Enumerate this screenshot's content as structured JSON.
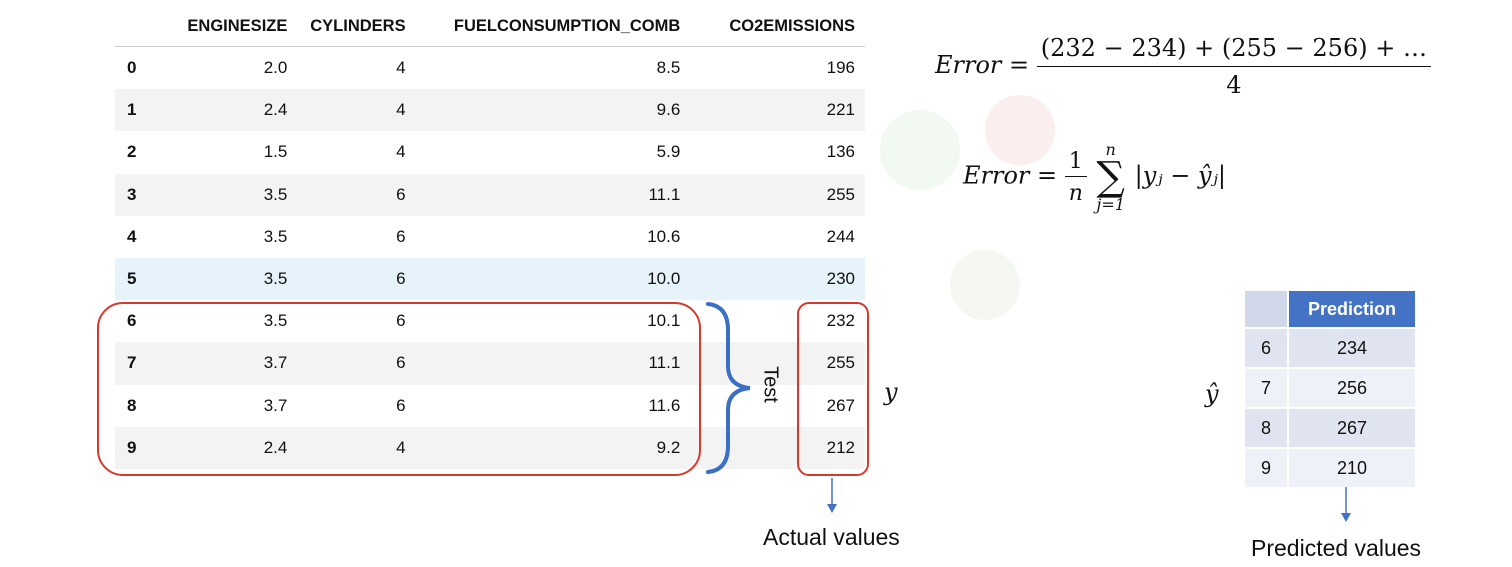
{
  "table": {
    "columns": [
      "ENGINESIZE",
      "CYLINDERS",
      "FUELCONSUMPTION_COMB",
      "CO2EMISSIONS"
    ],
    "rows": [
      {
        "idx": "0",
        "cells": [
          "2.0",
          "4",
          "8.5",
          "196"
        ]
      },
      {
        "idx": "1",
        "cells": [
          "2.4",
          "4",
          "9.6",
          "221"
        ]
      },
      {
        "idx": "2",
        "cells": [
          "1.5",
          "4",
          "5.9",
          "136"
        ]
      },
      {
        "idx": "3",
        "cells": [
          "3.5",
          "6",
          "11.1",
          "255"
        ]
      },
      {
        "idx": "4",
        "cells": [
          "3.5",
          "6",
          "10.6",
          "244"
        ]
      },
      {
        "idx": "5",
        "cells": [
          "3.5",
          "6",
          "10.0",
          "230"
        ]
      },
      {
        "idx": "6",
        "cells": [
          "3.5",
          "6",
          "10.1",
          "232"
        ]
      },
      {
        "idx": "7",
        "cells": [
          "3.7",
          "6",
          "11.1",
          "255"
        ]
      },
      {
        "idx": "8",
        "cells": [
          "3.7",
          "6",
          "11.6",
          "267"
        ]
      },
      {
        "idx": "9",
        "cells": [
          "2.4",
          "4",
          "9.2",
          "212"
        ]
      }
    ]
  },
  "test_label": "Test",
  "y_label": "y",
  "y_hat_label": "ŷ",
  "actual_caption": "Actual values",
  "predicted_caption": "Predicted values",
  "formula1": {
    "lhs": "Error",
    "numerator": "(232 − 234) + (255 − 256) +  …",
    "denominator": "4"
  },
  "formula2": {
    "lhs": "Error",
    "frac_num": "1",
    "frac_den": "n",
    "sum_top": "n",
    "sum_bottom": "j=1",
    "body": "|yⱼ − ŷⱼ|"
  },
  "prediction": {
    "header": "Prediction",
    "rows": [
      {
        "idx": "6",
        "value": "234"
      },
      {
        "idx": "7",
        "value": "256"
      },
      {
        "idx": "8",
        "value": "267"
      },
      {
        "idx": "9",
        "value": "210"
      }
    ]
  },
  "colors": {
    "red_box": "#d63a2f",
    "brace": "#3b6fc4",
    "pred_header": "#4472c4",
    "highlight_row": "#e6f3fb"
  }
}
